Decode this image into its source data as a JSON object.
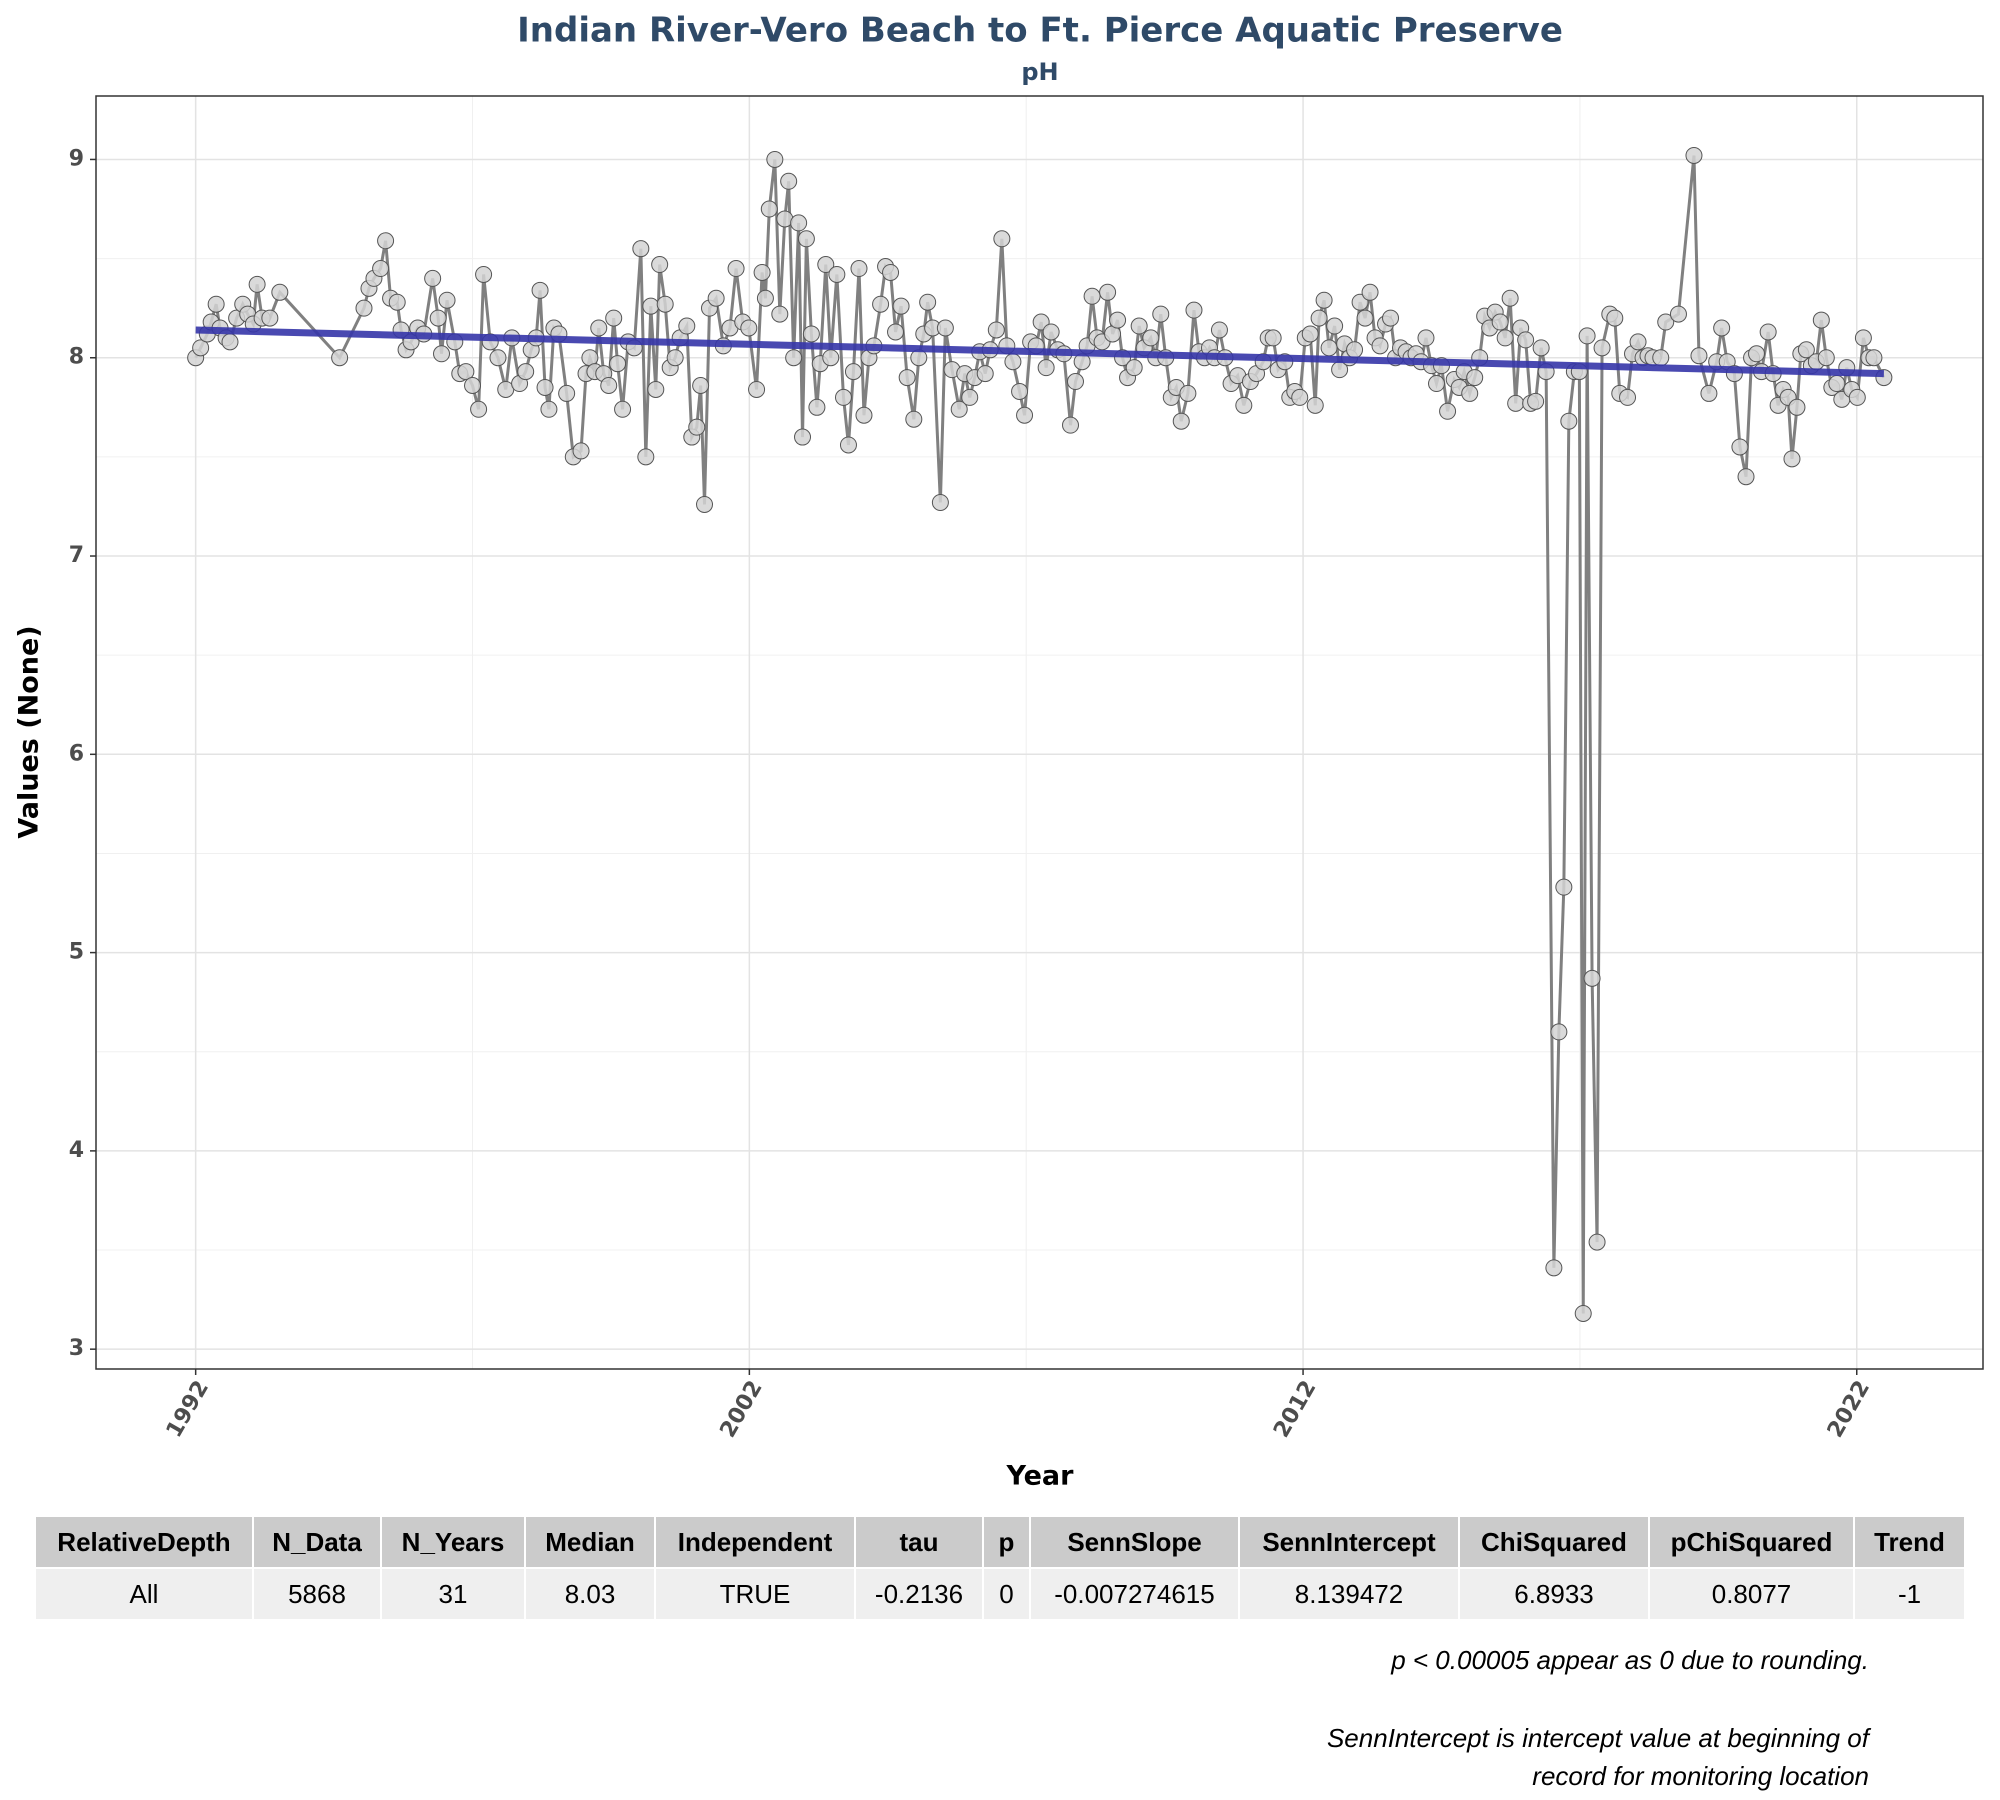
{
  "chart_data": {
    "type": "line",
    "title": "Indian River-Vero Beach to Ft. Pierce Aquatic Preserve",
    "subtitle": "pH",
    "x_label": "Year",
    "y_label": "Values (None)",
    "xlim": [
      1990.2,
      2024.28
    ],
    "xticks": [
      1992,
      2002,
      2012,
      2022
    ],
    "ylim": [
      2.9,
      9.32
    ],
    "yticks": [
      3,
      4,
      5,
      6,
      7,
      8,
      9
    ],
    "grid": true,
    "x": [
      1992.0,
      1992.09,
      1992.21,
      1992.28,
      1992.37,
      1992.44,
      1992.55,
      1992.62,
      1992.74,
      1992.85,
      1992.94,
      1993.04,
      1993.11,
      1993.2,
      1993.34,
      1993.52,
      1994.6,
      1995.04,
      1995.13,
      1995.22,
      1995.34,
      1995.43,
      1995.52,
      1995.64,
      1995.71,
      1995.8,
      1995.89,
      1996.01,
      1996.12,
      1996.28,
      1996.38,
      1996.44,
      1996.54,
      1996.68,
      1996.77,
      1996.88,
      1997.0,
      1997.11,
      1997.2,
      1997.32,
      1997.46,
      1997.6,
      1997.71,
      1997.85,
      1997.96,
      1998.06,
      1998.15,
      1998.22,
      1998.31,
      1998.38,
      1998.47,
      1998.56,
      1998.7,
      1998.82,
      1998.96,
      1999.05,
      1999.12,
      1999.21,
      1999.28,
      1999.37,
      1999.46,
      1999.55,
      1999.62,
      1999.71,
      1999.81,
      1999.92,
      2000.04,
      2000.13,
      2000.22,
      2000.31,
      2000.38,
      2000.48,
      2000.57,
      2000.66,
      2000.75,
      2000.87,
      2000.96,
      2001.05,
      2001.12,
      2001.19,
      2001.28,
      2001.4,
      2001.53,
      2001.65,
      2001.76,
      2001.88,
      2001.99,
      2002.13,
      2002.23,
      2002.29,
      2002.36,
      2002.46,
      2002.55,
      2002.64,
      2002.71,
      2002.8,
      2002.89,
      2002.96,
      2003.03,
      2003.12,
      2003.22,
      2003.28,
      2003.38,
      2003.47,
      2003.58,
      2003.7,
      2003.79,
      2003.88,
      2003.98,
      2004.07,
      2004.16,
      2004.25,
      2004.37,
      2004.46,
      2004.55,
      2004.64,
      2004.74,
      2004.85,
      2004.97,
      2005.06,
      2005.15,
      2005.22,
      2005.31,
      2005.45,
      2005.54,
      2005.66,
      2005.79,
      2005.89,
      2005.98,
      2006.07,
      2006.16,
      2006.26,
      2006.35,
      2006.46,
      2006.56,
      2006.65,
      2006.76,
      2006.88,
      2006.97,
      2007.08,
      2007.18,
      2007.27,
      2007.36,
      2007.45,
      2007.57,
      2007.68,
      2007.8,
      2007.89,
      2008.01,
      2008.1,
      2008.19,
      2008.28,
      2008.37,
      2008.47,
      2008.56,
      2008.65,
      2008.74,
      2008.83,
      2008.95,
      2009.04,
      2009.13,
      2009.25,
      2009.34,
      2009.43,
      2009.52,
      2009.62,
      2009.71,
      2009.8,
      2009.92,
      2010.03,
      2010.12,
      2010.22,
      2010.31,
      2010.4,
      2010.49,
      2010.59,
      2010.7,
      2010.82,
      2010.93,
      2011.05,
      2011.16,
      2011.28,
      2011.37,
      2011.46,
      2011.55,
      2011.67,
      2011.76,
      2011.85,
      2011.94,
      2012.04,
      2012.13,
      2012.22,
      2012.29,
      2012.38,
      2012.47,
      2012.57,
      2012.66,
      2012.75,
      2012.84,
      2012.93,
      2013.03,
      2013.12,
      2013.21,
      2013.3,
      2013.39,
      2013.49,
      2013.58,
      2013.67,
      2013.76,
      2013.86,
      2013.95,
      2014.04,
      2014.13,
      2014.22,
      2014.32,
      2014.41,
      2014.5,
      2014.61,
      2014.73,
      2014.82,
      2014.91,
      2015.01,
      2015.1,
      2015.19,
      2015.28,
      2015.37,
      2015.47,
      2015.56,
      2015.65,
      2015.74,
      2015.84,
      2015.93,
      2016.02,
      2016.11,
      2016.2,
      2016.3,
      2016.39,
      2016.53,
      2016.62,
      2016.71,
      2016.8,
      2016.9,
      2016.99,
      2017.06,
      2017.13,
      2017.22,
      2017.31,
      2017.4,
      2017.54,
      2017.63,
      2017.72,
      2017.86,
      2017.95,
      2018.05,
      2018.14,
      2018.23,
      2018.32,
      2018.46,
      2018.55,
      2018.78,
      2019.06,
      2019.15,
      2019.33,
      2019.47,
      2019.56,
      2019.66,
      2019.79,
      2019.89,
      2020.0,
      2020.1,
      2020.19,
      2020.28,
      2020.4,
      2020.49,
      2020.58,
      2020.67,
      2020.76,
      2020.83,
      2020.92,
      2020.99,
      2021.09,
      2021.18,
      2021.27,
      2021.36,
      2021.45,
      2021.55,
      2021.64,
      2021.73,
      2021.82,
      2021.91,
      2022.01,
      2022.12,
      2022.22,
      2022.31,
      2022.49
    ],
    "series": [
      {
        "color": "#808080",
        "marker_fill": "#d3d3d3",
        "marker_stroke": "#555555",
        "values": [
          8.0,
          8.05,
          8.12,
          8.18,
          8.27,
          8.15,
          8.1,
          8.08,
          8.2,
          8.27,
          8.22,
          8.17,
          8.37,
          8.2,
          8.2,
          8.33,
          8.0,
          8.25,
          8.35,
          8.4,
          8.45,
          8.59,
          8.3,
          8.28,
          8.14,
          8.04,
          8.08,
          8.15,
          8.12,
          8.4,
          8.2,
          8.02,
          8.29,
          8.08,
          7.92,
          7.93,
          7.86,
          7.74,
          8.42,
          8.08,
          8.0,
          7.84,
          8.1,
          7.87,
          7.93,
          8.04,
          8.1,
          8.34,
          7.85,
          7.74,
          8.15,
          8.12,
          7.82,
          7.5,
          7.53,
          7.92,
          8.0,
          7.93,
          8.15,
          7.92,
          7.86,
          8.2,
          7.97,
          7.74,
          8.08,
          8.05,
          8.55,
          7.5,
          8.26,
          7.84,
          8.47,
          8.27,
          7.95,
          8.0,
          8.1,
          8.16,
          7.6,
          7.65,
          7.86,
          7.26,
          8.25,
          8.3,
          8.06,
          8.15,
          8.45,
          8.18,
          8.15,
          7.84,
          8.43,
          8.3,
          8.75,
          9.0,
          8.22,
          8.7,
          8.89,
          8.0,
          8.68,
          7.6,
          8.6,
          8.12,
          7.75,
          7.97,
          8.47,
          8.0,
          8.42,
          7.8,
          7.56,
          7.93,
          8.45,
          7.71,
          8.0,
          8.06,
          8.27,
          8.46,
          8.43,
          8.13,
          8.26,
          7.9,
          7.69,
          8.0,
          8.12,
          8.28,
          8.15,
          7.27,
          8.15,
          7.94,
          7.74,
          7.92,
          7.8,
          7.9,
          8.03,
          7.92,
          8.04,
          8.14,
          8.6,
          8.06,
          7.98,
          7.83,
          7.71,
          8.08,
          8.06,
          8.18,
          7.95,
          8.13,
          8.04,
          8.02,
          7.66,
          7.88,
          7.98,
          8.06,
          8.31,
          8.1,
          8.08,
          8.33,
          8.12,
          8.19,
          8.0,
          7.9,
          7.95,
          8.16,
          8.05,
          8.1,
          8.0,
          8.22,
          8.0,
          7.8,
          7.85,
          7.68,
          7.82,
          8.24,
          8.03,
          8.0,
          8.05,
          8.0,
          8.14,
          8.0,
          7.87,
          7.91,
          7.76,
          7.88,
          7.92,
          7.98,
          8.1,
          8.1,
          7.94,
          7.98,
          7.8,
          7.83,
          7.8,
          8.1,
          8.12,
          7.76,
          8.2,
          8.29,
          8.05,
          8.16,
          7.94,
          8.07,
          8.0,
          8.04,
          8.28,
          8.2,
          8.33,
          8.1,
          8.06,
          8.17,
          8.2,
          8.0,
          8.05,
          8.03,
          8.0,
          8.02,
          7.98,
          8.1,
          7.96,
          7.87,
          7.96,
          7.73,
          7.89,
          7.85,
          7.93,
          7.82,
          7.9,
          8.0,
          8.21,
          8.15,
          8.23,
          8.18,
          8.1,
          8.3,
          7.77,
          8.15,
          8.09,
          7.77,
          7.78,
          8.05,
          7.93,
          3.41,
          4.6,
          5.33,
          7.68,
          7.93,
          7.93,
          3.18,
          8.11,
          4.87,
          3.54,
          8.05,
          8.22,
          8.2,
          7.82,
          7.8,
          8.02,
          8.08,
          8.0,
          8.01,
          8.0,
          8.0,
          8.18,
          8.22,
          9.02,
          8.01,
          7.82,
          7.98,
          8.15,
          7.98,
          7.92,
          7.55,
          7.4,
          8.0,
          8.02,
          7.93,
          8.13,
          7.92,
          7.76,
          7.84,
          7.8,
          7.49,
          7.75,
          8.02,
          8.04,
          7.96,
          7.98,
          8.19,
          8.0,
          7.85,
          7.87,
          7.79,
          7.95,
          7.84,
          7.8,
          8.1,
          8.0,
          8.0,
          7.9
        ]
      }
    ],
    "trend": {
      "color": "#3535a8",
      "x": [
        1992.0,
        2022.49
      ],
      "values": [
        8.14,
        7.92
      ]
    }
  },
  "table": {
    "header": [
      "RelativeDepth",
      "N_Data",
      "N_Years",
      "Median",
      "Independent",
      "tau",
      "p",
      "SennSlope",
      "SennIntercept",
      "ChiSquared",
      "pChiSquared",
      "Trend"
    ],
    "rows": [
      [
        "All",
        "5868",
        "31",
        "8.03",
        "TRUE",
        "-0.2136",
        "0",
        "-0.007274615",
        "8.139472",
        "6.8933",
        "0.8077",
        "-1"
      ]
    ]
  },
  "notes": [
    "p < 0.00005 appear as 0 due to rounding.",
    "SennIntercept is intercept value at beginning of record for monitoring location"
  ]
}
